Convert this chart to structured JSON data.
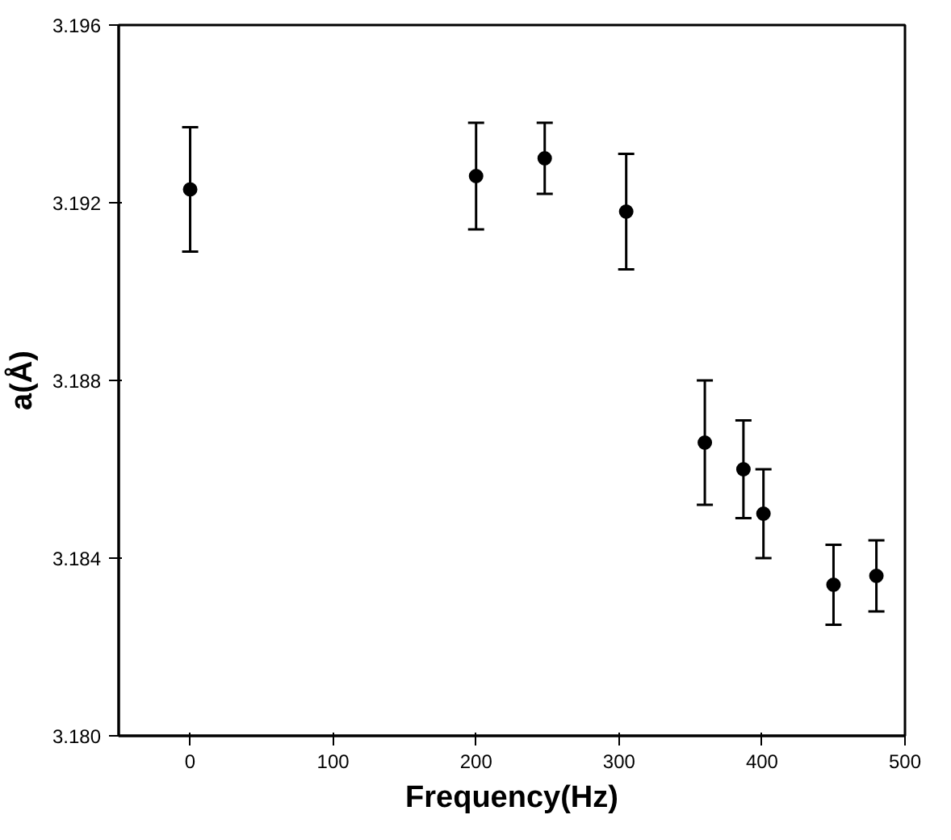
{
  "chart_data": {
    "type": "scatter",
    "xlabel": "Frequency(Hz)",
    "ylabel": "a(Å)",
    "x": [
      0,
      200,
      248,
      305,
      360,
      387,
      401,
      450,
      480
    ],
    "values": [
      3.1923,
      3.1926,
      3.193,
      3.1918,
      3.1866,
      3.186,
      3.185,
      3.1834,
      3.1836
    ],
    "errors": [
      [
        3.1909,
        3.1937
      ],
      [
        3.1914,
        3.1938
      ],
      [
        3.1922,
        3.1938
      ],
      [
        3.1905,
        3.1931
      ],
      [
        3.1852,
        3.188
      ],
      [
        3.1849,
        3.1871
      ],
      [
        3.184,
        3.186
      ],
      [
        3.1825,
        3.1843
      ],
      [
        3.1828,
        3.1844
      ]
    ],
    "color": "#000000",
    "marker": "circle",
    "xlim": [
      -50,
      500
    ],
    "ylim": [
      3.18,
      3.196
    ],
    "xticks": [
      0,
      100,
      200,
      300,
      400,
      500
    ],
    "yticks": [
      {
        "value": 3.18,
        "label": "3.180"
      },
      {
        "value": 3.184,
        "label": "3.184"
      },
      {
        "value": 3.188,
        "label": "3.188"
      },
      {
        "value": 3.192,
        "label": "3.192"
      },
      {
        "value": 3.196,
        "label": "3.196"
      }
    ],
    "grid": false
  }
}
